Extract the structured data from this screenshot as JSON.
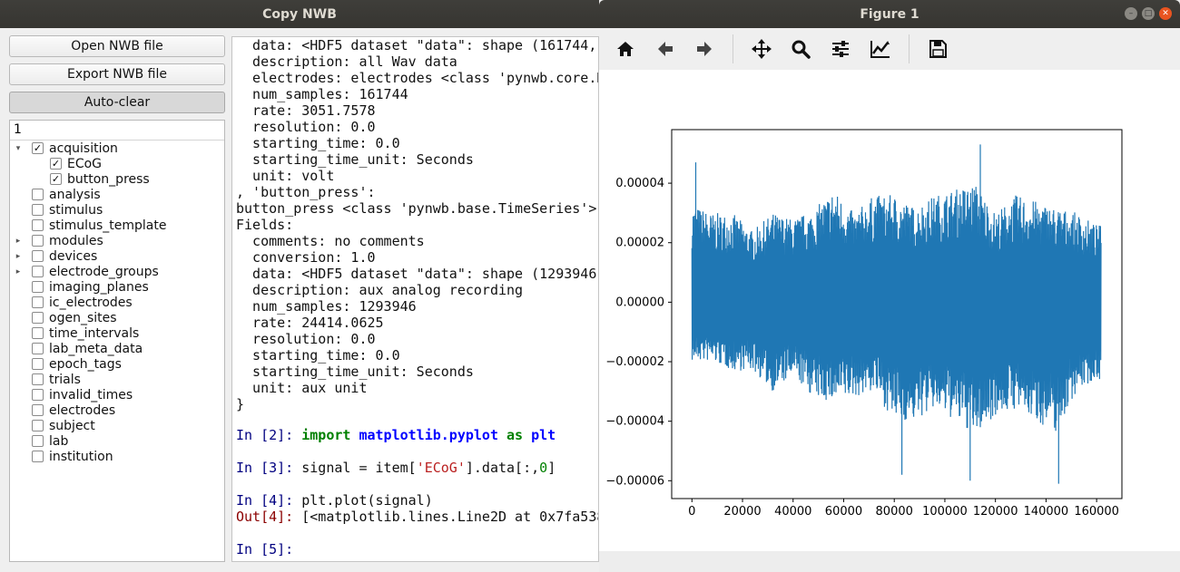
{
  "left_window": {
    "title": "Copy NWB",
    "buttons": {
      "open": "Open NWB file",
      "export": "Export NWB file",
      "autoclear": "Auto-clear"
    },
    "tree": {
      "header": "1",
      "items": [
        {
          "label": "acquisition",
          "checked": true,
          "arrow": "down",
          "indent": 0
        },
        {
          "label": "ECoG",
          "checked": true,
          "arrow": "",
          "indent": 1
        },
        {
          "label": "button_press",
          "checked": true,
          "arrow": "",
          "indent": 1
        },
        {
          "label": "analysis",
          "checked": false,
          "arrow": "",
          "indent": 0
        },
        {
          "label": "stimulus",
          "checked": false,
          "arrow": "",
          "indent": 0
        },
        {
          "label": "stimulus_template",
          "checked": false,
          "arrow": "",
          "indent": 0
        },
        {
          "label": "modules",
          "checked": false,
          "arrow": "right",
          "indent": 0
        },
        {
          "label": "devices",
          "checked": false,
          "arrow": "right",
          "indent": 0
        },
        {
          "label": "electrode_groups",
          "checked": false,
          "arrow": "right",
          "indent": 0
        },
        {
          "label": "imaging_planes",
          "checked": false,
          "arrow": "",
          "indent": 0
        },
        {
          "label": "ic_electrodes",
          "checked": false,
          "arrow": "",
          "indent": 0
        },
        {
          "label": "ogen_sites",
          "checked": false,
          "arrow": "",
          "indent": 0
        },
        {
          "label": "time_intervals",
          "checked": false,
          "arrow": "",
          "indent": 0
        },
        {
          "label": "lab_meta_data",
          "checked": false,
          "arrow": "",
          "indent": 0
        },
        {
          "label": "epoch_tags",
          "checked": false,
          "arrow": "",
          "indent": 0
        },
        {
          "label": "trials",
          "checked": false,
          "arrow": "",
          "indent": 0
        },
        {
          "label": "invalid_times",
          "checked": false,
          "arrow": "",
          "indent": 0
        },
        {
          "label": "electrodes",
          "checked": false,
          "arrow": "",
          "indent": 0
        },
        {
          "label": "subject",
          "checked": false,
          "arrow": "",
          "indent": 0
        },
        {
          "label": "lab",
          "checked": false,
          "arrow": "",
          "indent": 0
        },
        {
          "label": "institution",
          "checked": false,
          "arrow": "",
          "indent": 0
        }
      ]
    },
    "console_lines": [
      "  data: <HDF5 dataset \"data\": shape (161744,",
      "  description: all Wav data",
      "  electrodes: electrodes <class 'pynwb.core.D",
      "  num_samples: 161744",
      "  rate: 3051.7578",
      "  resolution: 0.0",
      "  starting_time: 0.0",
      "  starting_time_unit: Seconds",
      "  unit: volt",
      ", 'button_press':",
      "button_press <class 'pynwb.base.TimeSeries'>",
      "Fields:",
      "  comments: no comments",
      "  conversion: 1.0",
      "  data: <HDF5 dataset \"data\": shape (1293946,",
      "  description: aux analog recording",
      "  num_samples: 1293946",
      "  rate: 24414.0625",
      "  resolution: 0.0",
      "  starting_time: 0.0",
      "  starting_time_unit: Seconds",
      "  unit: aux unit",
      "}"
    ],
    "console_cmds": {
      "in2_prompt": "In [2]: ",
      "in2_kw1": "import",
      "in2_mod": "matplotlib.pyplot",
      "in2_kw2": "as",
      "in2_alias": "plt",
      "in3_prompt": "In [3]: ",
      "in3_a": "signal = item[",
      "in3_str": "'ECoG'",
      "in3_b": "].data[:,",
      "in3_num": "0",
      "in3_c": "]",
      "in4_prompt": "In [4]: ",
      "in4_code": "plt.plot(signal)",
      "out4_prompt": "Out[4]: ",
      "out4_text": "[<matplotlib.lines.Line2D at 0x7fa538",
      "in5_prompt": "In [5]: "
    }
  },
  "figure_window": {
    "title": "Figure 1",
    "toolbar_icons": [
      "home-icon",
      "back-arrow-icon",
      "forward-arrow-icon",
      "pan-icon",
      "zoom-icon",
      "subplots-icon",
      "edit-axes-icon",
      "save-icon"
    ]
  },
  "chart_data": {
    "type": "line",
    "title": "",
    "xlabel": "",
    "ylabel": "",
    "xlim": [
      -8000,
      170000
    ],
    "ylim": [
      -6.6e-05,
      5.8e-05
    ],
    "x_ticks": [
      "0",
      "20000",
      "40000",
      "60000",
      "80000",
      "100000",
      "120000",
      "140000",
      "160000"
    ],
    "y_ticks": [
      "0.00004",
      "0.00002",
      "0.00000",
      "−0.00002",
      "−0.00004",
      "−0.00006"
    ],
    "series": [
      {
        "color": "#1f77b4",
        "num_points": 161744,
        "x_range": [
          0,
          161744
        ],
        "approx_range": [
          -6.1e-05,
          5.3e-05
        ],
        "notable_peaks": [
          [
            1500,
            4.7e-05
          ],
          [
            114000,
            5.3e-05
          ]
        ],
        "notable_troughs": [
          [
            83000,
            -5.8e-05
          ],
          [
            110000,
            -6e-05
          ],
          [
            145000,
            -6.1e-05
          ]
        ],
        "envelope": [
          [
            0,
            3.3e-05,
            -2e-05
          ],
          [
            8000,
            3e-05,
            -2e-05
          ],
          [
            16000,
            3e-05,
            -2.3e-05
          ],
          [
            24000,
            2.4e-05,
            -2.3e-05
          ],
          [
            32000,
            3e-05,
            -3e-05
          ],
          [
            40000,
            2.8e-05,
            -2.5e-05
          ],
          [
            48000,
            3.1e-05,
            -3.2e-05
          ],
          [
            56000,
            3.8e-05,
            -3.4e-05
          ],
          [
            64000,
            3e-05,
            -3.2e-05
          ],
          [
            72000,
            3.6e-05,
            -3e-05
          ],
          [
            80000,
            3.6e-05,
            -4e-05
          ],
          [
            88000,
            3.2e-05,
            -4e-05
          ],
          [
            96000,
            3.6e-05,
            -3.6e-05
          ],
          [
            104000,
            3.8e-05,
            -4e-05
          ],
          [
            112000,
            4e-05,
            -4.5e-05
          ],
          [
            120000,
            3e-05,
            -3.8e-05
          ],
          [
            128000,
            3.6e-05,
            -3.6e-05
          ],
          [
            136000,
            3.4e-05,
            -4e-05
          ],
          [
            144000,
            3.2e-05,
            -4.4e-05
          ],
          [
            152000,
            3e-05,
            -3e-05
          ],
          [
            160000,
            2.6e-05,
            -2.6e-05
          ]
        ]
      }
    ]
  }
}
